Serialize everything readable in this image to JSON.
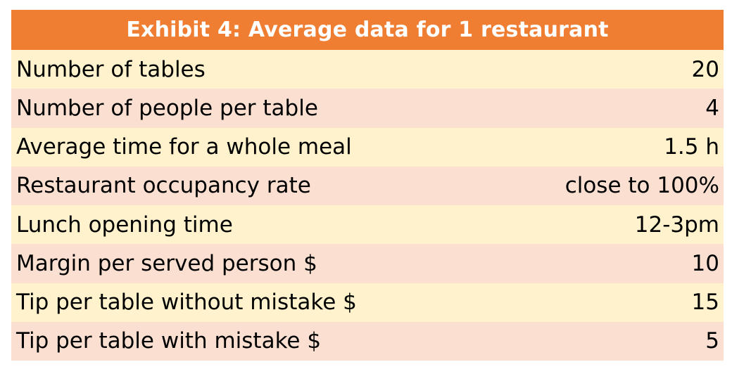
{
  "chart_data": {
    "type": "table",
    "title": "Exhibit 4: Average data for 1 restaurant",
    "columns": [
      "",
      ""
    ],
    "rows": [
      {
        "label": "Number of tables",
        "value": "20"
      },
      {
        "label": "Number of people per table",
        "value": "4"
      },
      {
        "label": "Average time for a whole meal",
        "value": "1.5 h"
      },
      {
        "label": "Restaurant occupancy rate",
        "value": "close to 100%"
      },
      {
        "label": "Lunch opening time",
        "value": "12-3pm"
      },
      {
        "label": "Margin per served person $",
        "value": "10"
      },
      {
        "label": "Tip per table without mistake $",
        "value": "15"
      },
      {
        "label": "Tip per table with mistake $",
        "value": "5"
      }
    ]
  },
  "colors": {
    "header_bg": "#ef7d32",
    "header_text": "#ffffff",
    "row_odd": "#fff2cc",
    "row_even": "#fbe0d2"
  }
}
